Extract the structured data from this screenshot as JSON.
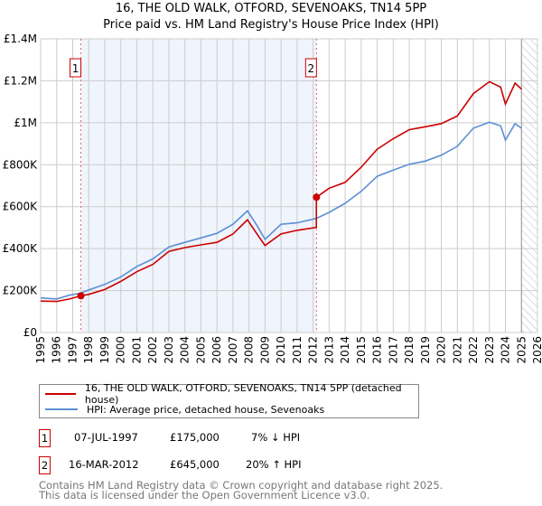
{
  "chart_data": {
    "type": "line",
    "title": "16, THE OLD WALK, OTFORD, SEVENOAKS, TN14 5PP",
    "subtitle": "Price paid vs. HM Land Registry's House Price Index (HPI)",
    "xlim": [
      1995,
      2026
    ],
    "ylim": [
      0,
      1400000
    ],
    "x_ticks": [
      "1995",
      "1996",
      "1997",
      "1998",
      "1999",
      "2000",
      "2001",
      "2002",
      "2003",
      "2004",
      "2005",
      "2006",
      "2007",
      "2008",
      "2009",
      "2010",
      "2011",
      "2012",
      "2013",
      "2014",
      "2015",
      "2016",
      "2017",
      "2018",
      "2019",
      "2020",
      "2021",
      "2022",
      "2023",
      "2024",
      "2025",
      "2026"
    ],
    "y_ticks": [
      {
        "v": 0,
        "label": "£0"
      },
      {
        "v": 200000,
        "label": "£200K"
      },
      {
        "v": 400000,
        "label": "£400K"
      },
      {
        "v": 600000,
        "label": "£600K"
      },
      {
        "v": 800000,
        "label": "£800K"
      },
      {
        "v": 1000000,
        "label": "£1M"
      },
      {
        "v": 1200000,
        "label": "£1.2M"
      },
      {
        "v": 1400000,
        "label": "£1.4M"
      }
    ],
    "grid": true,
    "shaded_range": [
      1997.51,
      2012.21
    ],
    "forecast_hatch_from": 2025.0,
    "series": [
      {
        "name": "16, THE OLD WALK, OTFORD, SEVENOAKS, TN14 5PP (detached house)",
        "color": "#cc0000",
        "x": [
          1995,
          1996,
          1996.8,
          1997.51,
          1998,
          1999,
          2000,
          2001,
          2002,
          2003,
          2004,
          2005,
          2006,
          2007,
          2007.9,
          2008.5,
          2009,
          2010,
          2011,
          2012.2,
          2012.21,
          2013,
          2014,
          2015,
          2016,
          2017,
          2018,
          2019,
          2020,
          2021,
          2022,
          2023,
          2023.7,
          2024,
          2024.6,
          2025
        ],
        "y": [
          150000,
          148000,
          160000,
          175000,
          182000,
          205000,
          244000,
          290000,
          325000,
          387000,
          405000,
          418000,
          430000,
          470000,
          537000,
          470000,
          415000,
          470000,
          487000,
          501000,
          645000,
          688000,
          716000,
          788000,
          874000,
          924000,
          967000,
          981000,
          996000,
          1032000,
          1139000,
          1196000,
          1170000,
          1089000,
          1189000,
          1160000
        ]
      },
      {
        "name": "HPI: Average price, detached house, Sevenoaks",
        "color": "#5b8fd4",
        "x": [
          1995,
          1996,
          1996.8,
          1997.51,
          1998,
          1999,
          2000,
          2001,
          2002,
          2003,
          2004,
          2005,
          2006,
          2007,
          2007.9,
          2008.5,
          2009,
          2010,
          2011,
          2012.2,
          2013,
          2014,
          2015,
          2016,
          2017,
          2018,
          2019,
          2020,
          2021,
          2022,
          2023,
          2023.7,
          2024,
          2024.6,
          2025
        ],
        "y": [
          165000,
          160000,
          178000,
          188000,
          203000,
          229000,
          265000,
          315000,
          351000,
          408000,
          430000,
          451000,
          473000,
          516000,
          580000,
          510000,
          444000,
          516000,
          523000,
          544000,
          573000,
          616000,
          673000,
          745000,
          774000,
          802000,
          817000,
          845000,
          888000,
          974000,
          1003000,
          985000,
          917000,
          996000,
          974000
        ]
      }
    ],
    "sales": [
      {
        "id": "1",
        "x": 1997.51,
        "y": 175000
      },
      {
        "id": "2",
        "x": 2012.21,
        "y": 645000
      }
    ]
  },
  "legend": {
    "property": "16, THE OLD WALK, OTFORD, SEVENOAKS, TN14 5PP (detached house)",
    "hpi": "HPI: Average price, detached house, Sevenoaks"
  },
  "transactions": [
    {
      "num": "1",
      "date": "07-JUL-1997",
      "price": "£175,000",
      "hpi": "7% ↓ HPI"
    },
    {
      "num": "2",
      "date": "16-MAR-2012",
      "price": "£645,000",
      "hpi": "20% ↑ HPI"
    }
  ],
  "footer": {
    "line1": "Contains HM Land Registry data © Crown copyright and database right 2025.",
    "line2": "This data is licensed under the Open Government Licence v3.0."
  },
  "colors": {
    "property": "#cc0000",
    "hpi": "#5b8fd4"
  }
}
